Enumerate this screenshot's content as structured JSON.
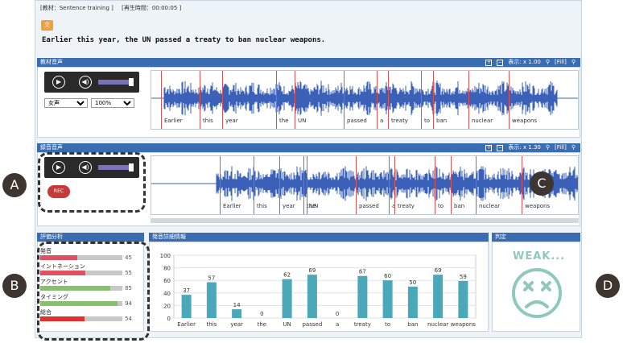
{
  "info": {
    "material": "[教材：Sentence training ]",
    "playtime": "[再生時間：00:00:05 ]"
  },
  "tag": "文",
  "sentence": "Earlier this year, the UN passed a treaty to ban nuclear weapons.",
  "material_audio": {
    "title": "教材音声",
    "zoom": "表示: x 1.00",
    "fill": "[Fill]",
    "voice": "女声",
    "speed": "100%"
  },
  "record_audio": {
    "title": "録音音声",
    "zoom": "表示: x 1.30",
    "fill": "[Fill]",
    "rec": "REC"
  },
  "words_material": [
    "Earlier",
    "this",
    "year",
    "the",
    "UN",
    "passed",
    "a",
    "treaty",
    "to",
    "ban",
    "nuclear",
    "weapons"
  ],
  "words_record": [
    "Earlier",
    "this",
    "year",
    "the",
    "UN",
    "passed",
    "a",
    "treaty",
    "to",
    "ban",
    "nuclear",
    "weapons"
  ],
  "evaluation": {
    "title": "評価分析",
    "rows": [
      {
        "label": "発音",
        "value": 45,
        "color": "#e05060"
      },
      {
        "label": "イントネーション",
        "value": 55,
        "color": "#e05060"
      },
      {
        "label": "アクセント",
        "value": 85,
        "color": "#88c070"
      },
      {
        "label": "タイミング",
        "value": 94,
        "color": "#88c070"
      },
      {
        "label": "総合",
        "value": 54,
        "color": "#e03030"
      }
    ]
  },
  "detail": {
    "title": "発音詳細情報"
  },
  "judge": {
    "title": "判定",
    "result": "WEAK..."
  },
  "callouts": {
    "a": "A",
    "b": "B",
    "c": "C",
    "d": "D"
  },
  "chart_data": {
    "type": "bar",
    "categories": [
      "Earlier",
      "this",
      "year",
      "the",
      "UN",
      "passed",
      "a",
      "treaty",
      "to",
      "ban",
      "nuclear",
      "weapons"
    ],
    "values": [
      37,
      57,
      14,
      0,
      62,
      69,
      0,
      67,
      60,
      50,
      69,
      59
    ],
    "ylim": [
      0,
      100
    ],
    "yticks": [
      0,
      20,
      40,
      60,
      80,
      100
    ],
    "bar_color": "#4aa8b8"
  }
}
